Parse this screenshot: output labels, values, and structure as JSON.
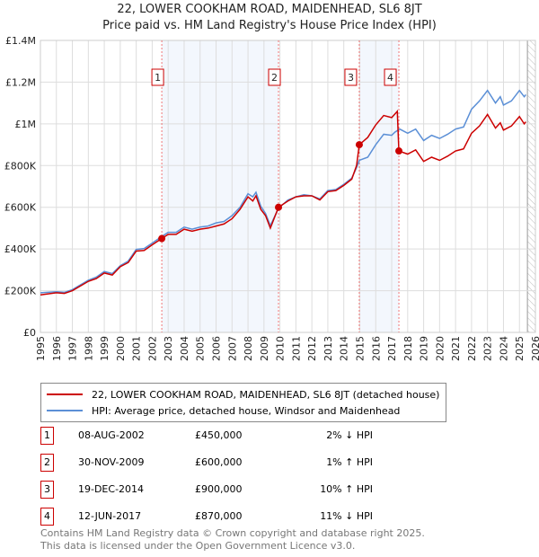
{
  "title": "22, LOWER COOKHAM ROAD, MAIDENHEAD, SL6 8JT",
  "subtitle": "Price paid vs. HM Land Registry's House Price Index (HPI)",
  "chart_data": {
    "type": "line",
    "xlim": [
      1995,
      2026
    ],
    "ylim": [
      0,
      1400000
    ],
    "y_ticks": [
      {
        "v": 0,
        "label": "£0"
      },
      {
        "v": 200000,
        "label": "£200K"
      },
      {
        "v": 400000,
        "label": "£400K"
      },
      {
        "v": 600000,
        "label": "£600K"
      },
      {
        "v": 800000,
        "label": "£800K"
      },
      {
        "v": 1000000,
        "label": "£1M"
      },
      {
        "v": 1200000,
        "label": "£1.2M"
      },
      {
        "v": 1400000,
        "label": "£1.4M"
      }
    ],
    "x_ticks": [
      "1995",
      "1996",
      "1997",
      "1998",
      "1999",
      "2000",
      "2001",
      "2002",
      "2003",
      "2004",
      "2005",
      "2006",
      "2007",
      "2008",
      "2009",
      "2010",
      "2011",
      "2012",
      "2013",
      "2014",
      "2015",
      "2016",
      "2017",
      "2018",
      "2019",
      "2020",
      "2021",
      "2022",
      "2023",
      "2024",
      "2025",
      "2026"
    ],
    "shaded_ranges": [
      [
        2002.6,
        2009.91
      ],
      [
        2014.97,
        2017.45
      ]
    ],
    "forecast_hatch_from": 2025.5,
    "series": [
      {
        "name": "22, LOWER COOKHAM ROAD, MAIDENHEAD, SL6 8JT (detached house)",
        "color": "#cc0000",
        "points": [
          [
            1995,
            180
          ],
          [
            1996,
            190
          ],
          [
            1996.5,
            187
          ],
          [
            1997,
            200
          ],
          [
            1998,
            245
          ],
          [
            1998.5,
            258
          ],
          [
            1999,
            285
          ],
          [
            1999.5,
            275
          ],
          [
            2000,
            315
          ],
          [
            2000.5,
            335
          ],
          [
            2001,
            390
          ],
          [
            2001.5,
            393
          ],
          [
            2002,
            420
          ],
          [
            2002.6,
            450
          ],
          [
            2003,
            470
          ],
          [
            2003.5,
            470
          ],
          [
            2004,
            495
          ],
          [
            2004.5,
            485
          ],
          [
            2005,
            495
          ],
          [
            2005.5,
            500
          ],
          [
            2006,
            510
          ],
          [
            2006.5,
            520
          ],
          [
            2007,
            545
          ],
          [
            2007.5,
            590
          ],
          [
            2008,
            650
          ],
          [
            2008.3,
            630
          ],
          [
            2008.5,
            655
          ],
          [
            2008.8,
            590
          ],
          [
            2009.1,
            560
          ],
          [
            2009.4,
            500
          ],
          [
            2009.91,
            600
          ],
          [
            2010.5,
            630
          ],
          [
            2011,
            650
          ],
          [
            2011.5,
            655
          ],
          [
            2012,
            655
          ],
          [
            2012.5,
            635
          ],
          [
            2013,
            675
          ],
          [
            2013.5,
            680
          ],
          [
            2014,
            705
          ],
          [
            2014.5,
            735
          ],
          [
            2014.8,
            800
          ],
          [
            2014.97,
            900
          ],
          [
            2015.5,
            935
          ],
          [
            2016,
            995
          ],
          [
            2016.5,
            1040
          ],
          [
            2017,
            1030
          ],
          [
            2017.35,
            1060
          ],
          [
            2017.45,
            870
          ],
          [
            2018,
            855
          ],
          [
            2018.5,
            875
          ],
          [
            2019,
            820
          ],
          [
            2019.5,
            840
          ],
          [
            2020,
            825
          ],
          [
            2020.5,
            845
          ],
          [
            2021,
            870
          ],
          [
            2021.5,
            880
          ],
          [
            2022,
            955
          ],
          [
            2022.5,
            990
          ],
          [
            2023,
            1045
          ],
          [
            2023.5,
            980
          ],
          [
            2023.8,
            1005
          ],
          [
            2024,
            970
          ],
          [
            2024.5,
            990
          ],
          [
            2025,
            1035
          ],
          [
            2025.3,
            1000
          ],
          [
            2025.4,
            1010
          ]
        ]
      },
      {
        "name": "HPI: Average price, detached house, Windsor and Maidenhead",
        "color": "#5b8fd6",
        "points": [
          [
            1995,
            190
          ],
          [
            1996,
            195
          ],
          [
            1996.5,
            192
          ],
          [
            1997,
            205
          ],
          [
            1998,
            250
          ],
          [
            1998.5,
            265
          ],
          [
            1999,
            292
          ],
          [
            1999.5,
            282
          ],
          [
            2000,
            320
          ],
          [
            2000.5,
            342
          ],
          [
            2001,
            398
          ],
          [
            2001.5,
            402
          ],
          [
            2002,
            428
          ],
          [
            2002.6,
            460
          ],
          [
            2003,
            480
          ],
          [
            2003.5,
            480
          ],
          [
            2004,
            505
          ],
          [
            2004.5,
            495
          ],
          [
            2005,
            505
          ],
          [
            2005.5,
            510
          ],
          [
            2006,
            525
          ],
          [
            2006.5,
            532
          ],
          [
            2007,
            560
          ],
          [
            2007.5,
            600
          ],
          [
            2008,
            665
          ],
          [
            2008.3,
            650
          ],
          [
            2008.5,
            672
          ],
          [
            2008.8,
            605
          ],
          [
            2009.1,
            570
          ],
          [
            2009.4,
            512
          ],
          [
            2009.91,
            595
          ],
          [
            2010.5,
            635
          ],
          [
            2011,
            650
          ],
          [
            2011.5,
            660
          ],
          [
            2012,
            655
          ],
          [
            2012.5,
            640
          ],
          [
            2013,
            680
          ],
          [
            2013.5,
            685
          ],
          [
            2014,
            710
          ],
          [
            2014.5,
            740
          ],
          [
            2014.8,
            790
          ],
          [
            2014.97,
            825
          ],
          [
            2015.5,
            840
          ],
          [
            2016,
            900
          ],
          [
            2016.5,
            950
          ],
          [
            2017,
            945
          ],
          [
            2017.2,
            960
          ],
          [
            2017.5,
            975
          ],
          [
            2018,
            955
          ],
          [
            2018.5,
            975
          ],
          [
            2019,
            920
          ],
          [
            2019.5,
            945
          ],
          [
            2020,
            930
          ],
          [
            2020.5,
            950
          ],
          [
            2021,
            975
          ],
          [
            2021.5,
            985
          ],
          [
            2022,
            1070
          ],
          [
            2022.5,
            1110
          ],
          [
            2023,
            1160
          ],
          [
            2023.5,
            1100
          ],
          [
            2023.8,
            1130
          ],
          [
            2024,
            1090
          ],
          [
            2024.5,
            1110
          ],
          [
            2025,
            1160
          ],
          [
            2025.3,
            1130
          ],
          [
            2025.4,
            1140
          ]
        ]
      }
    ],
    "sales": [
      {
        "n": "1",
        "x": 2002.6,
        "y": 450000
      },
      {
        "n": "2",
        "x": 2009.91,
        "y": 600000
      },
      {
        "n": "3",
        "x": 2014.97,
        "y": 900000
      },
      {
        "n": "4",
        "x": 2017.45,
        "y": 870000
      }
    ]
  },
  "legend": {
    "red": "22, LOWER COOKHAM ROAD, MAIDENHEAD, SL6 8JT (detached house)",
    "blue": "HPI: Average price, detached house, Windsor and Maidenhead"
  },
  "transactions": [
    {
      "n": "1",
      "date": "08-AUG-2002",
      "price": "£450,000",
      "hpi": "2% ↓ HPI"
    },
    {
      "n": "2",
      "date": "30-NOV-2009",
      "price": "£600,000",
      "hpi": "1% ↑ HPI"
    },
    {
      "n": "3",
      "date": "19-DEC-2014",
      "price": "£900,000",
      "hpi": "10% ↑ HPI"
    },
    {
      "n": "4",
      "date": "12-JUN-2017",
      "price": "£870,000",
      "hpi": "11% ↓ HPI"
    }
  ],
  "footer": [
    "Contains HM Land Registry data © Crown copyright and database right 2025.",
    "This data is licensed under the Open Government Licence v3.0."
  ]
}
